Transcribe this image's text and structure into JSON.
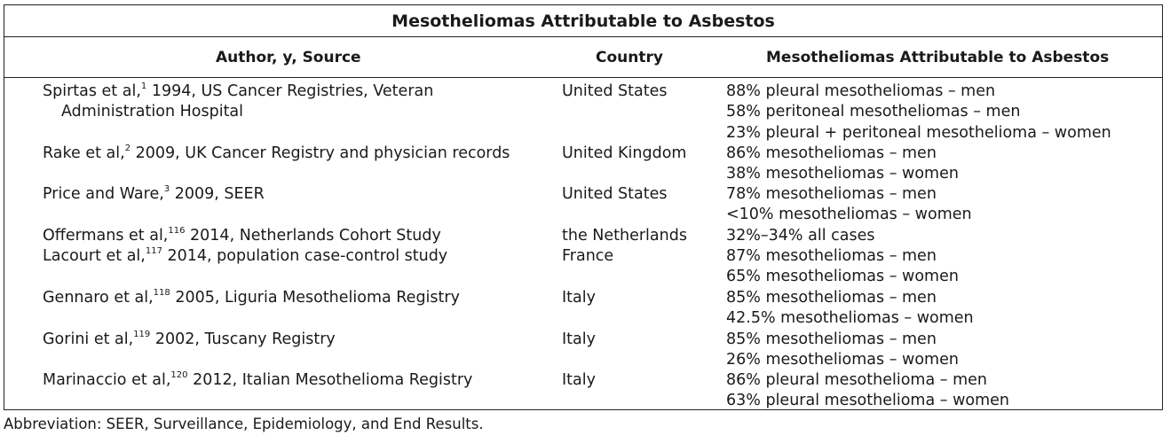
{
  "table": {
    "title": "Mesotheliomas Attributable to Asbestos",
    "headers": {
      "author": "Author, y, Source",
      "country": "Country",
      "attributable": "Mesotheliomas Attributable to Asbestos"
    },
    "rows": [
      {
        "author_name": "Spirtas et al,",
        "ref": "1",
        "author_rest": " 1994, US Cancer Registries, Veteran",
        "author_cont": "Administration Hospital",
        "country": "United States",
        "values": [
          "88% pleural mesotheliomas – men",
          "58% peritoneal mesotheliomas – men",
          "23% pleural + peritoneal mesothelioma – women"
        ]
      },
      {
        "author_name": "Rake et al,",
        "ref": "2",
        "author_rest": " 2009, UK Cancer Registry and physician records",
        "country": "United Kingdom",
        "values": [
          "86% mesotheliomas – men",
          "38% mesotheliomas – women"
        ]
      },
      {
        "author_name": "Price and Ware,",
        "ref": "3",
        "author_rest": " 2009, SEER",
        "country": "United States",
        "values": [
          "78% mesotheliomas – men",
          "<10% mesotheliomas – women"
        ]
      },
      {
        "author_name": "Offermans et al,",
        "ref": "116",
        "author_rest": " 2014, Netherlands Cohort Study",
        "country": "the Netherlands",
        "values": [
          "32%–34% all cases"
        ]
      },
      {
        "author_name": "Lacourt et al,",
        "ref": "117",
        "author_rest": " 2014, population case-control study",
        "country": "France",
        "values": [
          "87% mesotheliomas – men",
          "65% mesotheliomas – women"
        ]
      },
      {
        "author_name": "Gennaro et al,",
        "ref": "118",
        "author_rest": " 2005, Liguria Mesothelioma Registry",
        "country": "Italy",
        "values": [
          "85% mesotheliomas – men",
          "42.5% mesotheliomas – women"
        ]
      },
      {
        "author_name": "Gorini et al,",
        "ref": "119",
        "author_rest": " 2002, Tuscany Registry",
        "country": "Italy",
        "values": [
          "85% mesotheliomas – men",
          "26% mesotheliomas – women"
        ]
      },
      {
        "author_name": "Marinaccio et al,",
        "ref": "120",
        "author_rest": " 2012, Italian Mesothelioma Registry",
        "country": "Italy",
        "values": [
          "86% pleural mesothelioma – men",
          "63% pleural mesothelioma – women"
        ]
      }
    ]
  },
  "footnote": "Abbreviation: SEER, Surveillance, Epidemiology, and End Results."
}
